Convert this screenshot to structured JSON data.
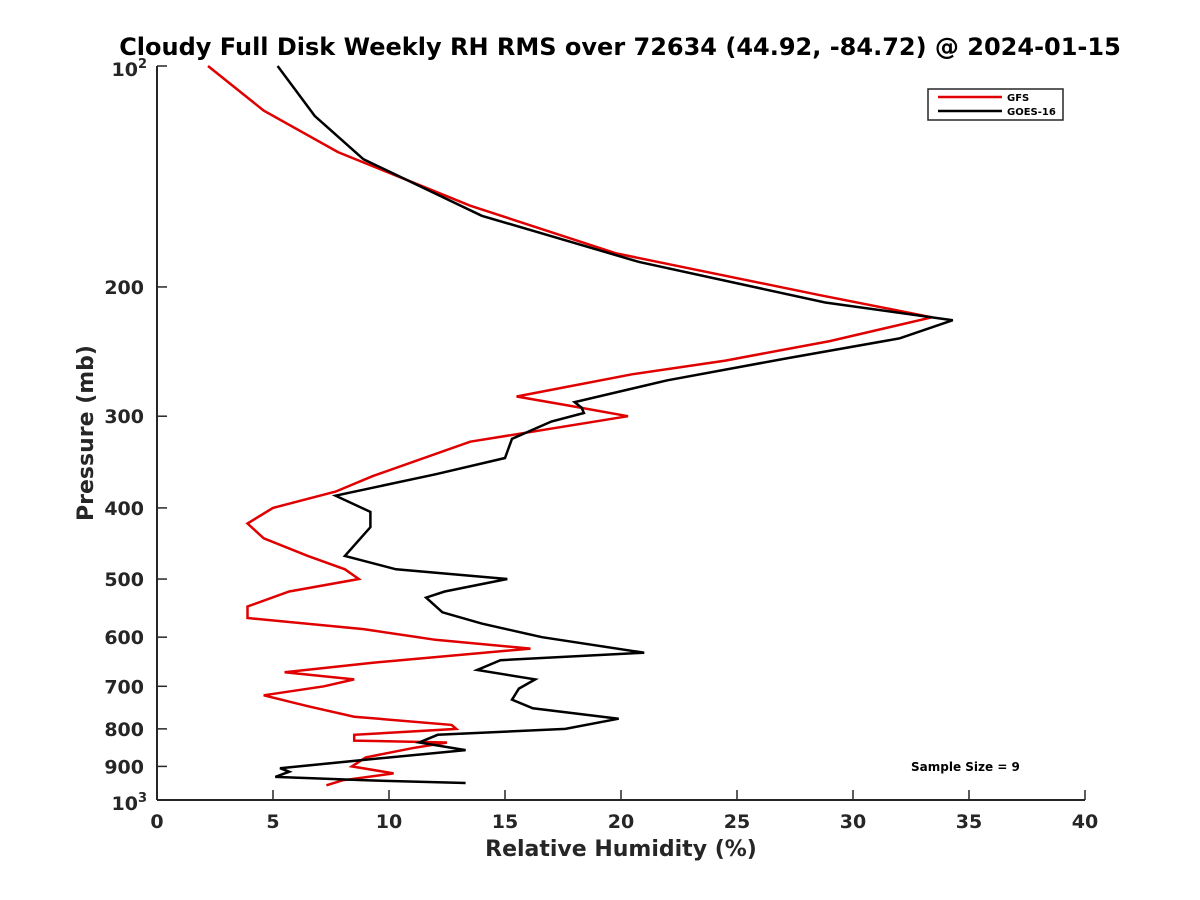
{
  "chart_data": {
    "type": "line",
    "title": "Cloudy Full Disk Weekly RH RMS over 72634 (44.92, -84.72) @ 2024-01-15",
    "xlabel": "Relative Humidity (%)",
    "ylabel": "Pressure (mb)",
    "xlim": [
      0,
      40
    ],
    "ylim": [
      100,
      1000
    ],
    "y_scale": "log",
    "y_reversed": true,
    "grid": false,
    "legend_position": "top-right",
    "x_ticks": [
      0,
      5,
      10,
      15,
      20,
      25,
      30,
      35,
      40
    ],
    "x_tick_labels": [
      "0",
      "5",
      "10",
      "15",
      "20",
      "25",
      "30",
      "35",
      "40"
    ],
    "y_ticks": [
      {
        "value": 100,
        "label": "10",
        "exp": "2"
      },
      {
        "value": 200,
        "label": "200",
        "exp": ""
      },
      {
        "value": 300,
        "label": "300",
        "exp": ""
      },
      {
        "value": 400,
        "label": "400",
        "exp": ""
      },
      {
        "value": 500,
        "label": "500",
        "exp": ""
      },
      {
        "value": 600,
        "label": "600",
        "exp": ""
      },
      {
        "value": 700,
        "label": "700",
        "exp": ""
      },
      {
        "value": 800,
        "label": "800",
        "exp": ""
      },
      {
        "value": 900,
        "label": "900",
        "exp": ""
      },
      {
        "value": 1000,
        "label": "10",
        "exp": "3"
      }
    ],
    "series": [
      {
        "name": "GFS",
        "color": "#e00000",
        "points": [
          [
            2.2,
            100
          ],
          [
            4.6,
            115
          ],
          [
            7.8,
            131
          ],
          [
            13.5,
            155
          ],
          [
            19.8,
            180
          ],
          [
            28.5,
            205
          ],
          [
            33.4,
            220
          ],
          [
            29.0,
            237
          ],
          [
            24.5,
            252
          ],
          [
            20.5,
            263
          ],
          [
            15.5,
            282
          ],
          [
            17.7,
            290
          ],
          [
            20.3,
            300
          ],
          [
            13.5,
            325
          ],
          [
            9.3,
            362
          ],
          [
            7.7,
            380
          ],
          [
            5.0,
            400
          ],
          [
            3.9,
            420
          ],
          [
            4.6,
            440
          ],
          [
            6.5,
            465
          ],
          [
            8.1,
            485
          ],
          [
            8.7,
            500
          ],
          [
            5.7,
            520
          ],
          [
            3.9,
            545
          ],
          [
            3.9,
            565
          ],
          [
            8.9,
            585
          ],
          [
            12.0,
            605
          ],
          [
            16.1,
            622
          ],
          [
            9.3,
            650
          ],
          [
            5.5,
            670
          ],
          [
            8.5,
            685
          ],
          [
            7.2,
            700
          ],
          [
            4.6,
            720
          ],
          [
            6.5,
            745
          ],
          [
            8.5,
            770
          ],
          [
            12.7,
            790
          ],
          [
            12.9,
            800
          ],
          [
            8.5,
            815
          ],
          [
            8.5,
            830
          ],
          [
            12.5,
            835
          ],
          [
            11.0,
            850
          ],
          [
            9.0,
            875
          ],
          [
            8.4,
            900
          ],
          [
            10.2,
            920
          ],
          [
            8.0,
            940
          ],
          [
            7.3,
            955
          ]
        ]
      },
      {
        "name": "GOES-16",
        "color": "#000000",
        "points": [
          [
            5.2,
            100
          ],
          [
            6.8,
            117
          ],
          [
            8.9,
            134
          ],
          [
            14.0,
            160
          ],
          [
            20.8,
            185
          ],
          [
            28.8,
            210
          ],
          [
            34.3,
            222
          ],
          [
            32.0,
            235
          ],
          [
            27.2,
            250
          ],
          [
            22.0,
            268
          ],
          [
            18.0,
            287
          ],
          [
            18.3,
            292
          ],
          [
            18.4,
            297
          ],
          [
            17.0,
            305
          ],
          [
            15.3,
            322
          ],
          [
            15.0,
            342
          ],
          [
            12.0,
            360
          ],
          [
            7.7,
            385
          ],
          [
            9.2,
            405
          ],
          [
            9.2,
            425
          ],
          [
            8.1,
            465
          ],
          [
            10.3,
            485
          ],
          [
            15.1,
            500
          ],
          [
            12.4,
            520
          ],
          [
            11.6,
            530
          ],
          [
            12.3,
            555
          ],
          [
            14.0,
            575
          ],
          [
            16.6,
            600
          ],
          [
            21.0,
            630
          ],
          [
            14.8,
            645
          ],
          [
            13.8,
            665
          ],
          [
            16.3,
            685
          ],
          [
            15.6,
            705
          ],
          [
            15.3,
            730
          ],
          [
            16.2,
            750
          ],
          [
            19.9,
            775
          ],
          [
            17.6,
            800
          ],
          [
            12.1,
            815
          ],
          [
            11.3,
            835
          ],
          [
            13.3,
            855
          ],
          [
            9.2,
            880
          ],
          [
            5.3,
            905
          ],
          [
            5.7,
            915
          ],
          [
            5.1,
            930
          ],
          [
            9.0,
            940
          ],
          [
            13.3,
            948
          ]
        ]
      }
    ],
    "annotations": [
      {
        "text": "Sample Size = 9",
        "x": 32.0,
        "y": 900
      }
    ]
  }
}
